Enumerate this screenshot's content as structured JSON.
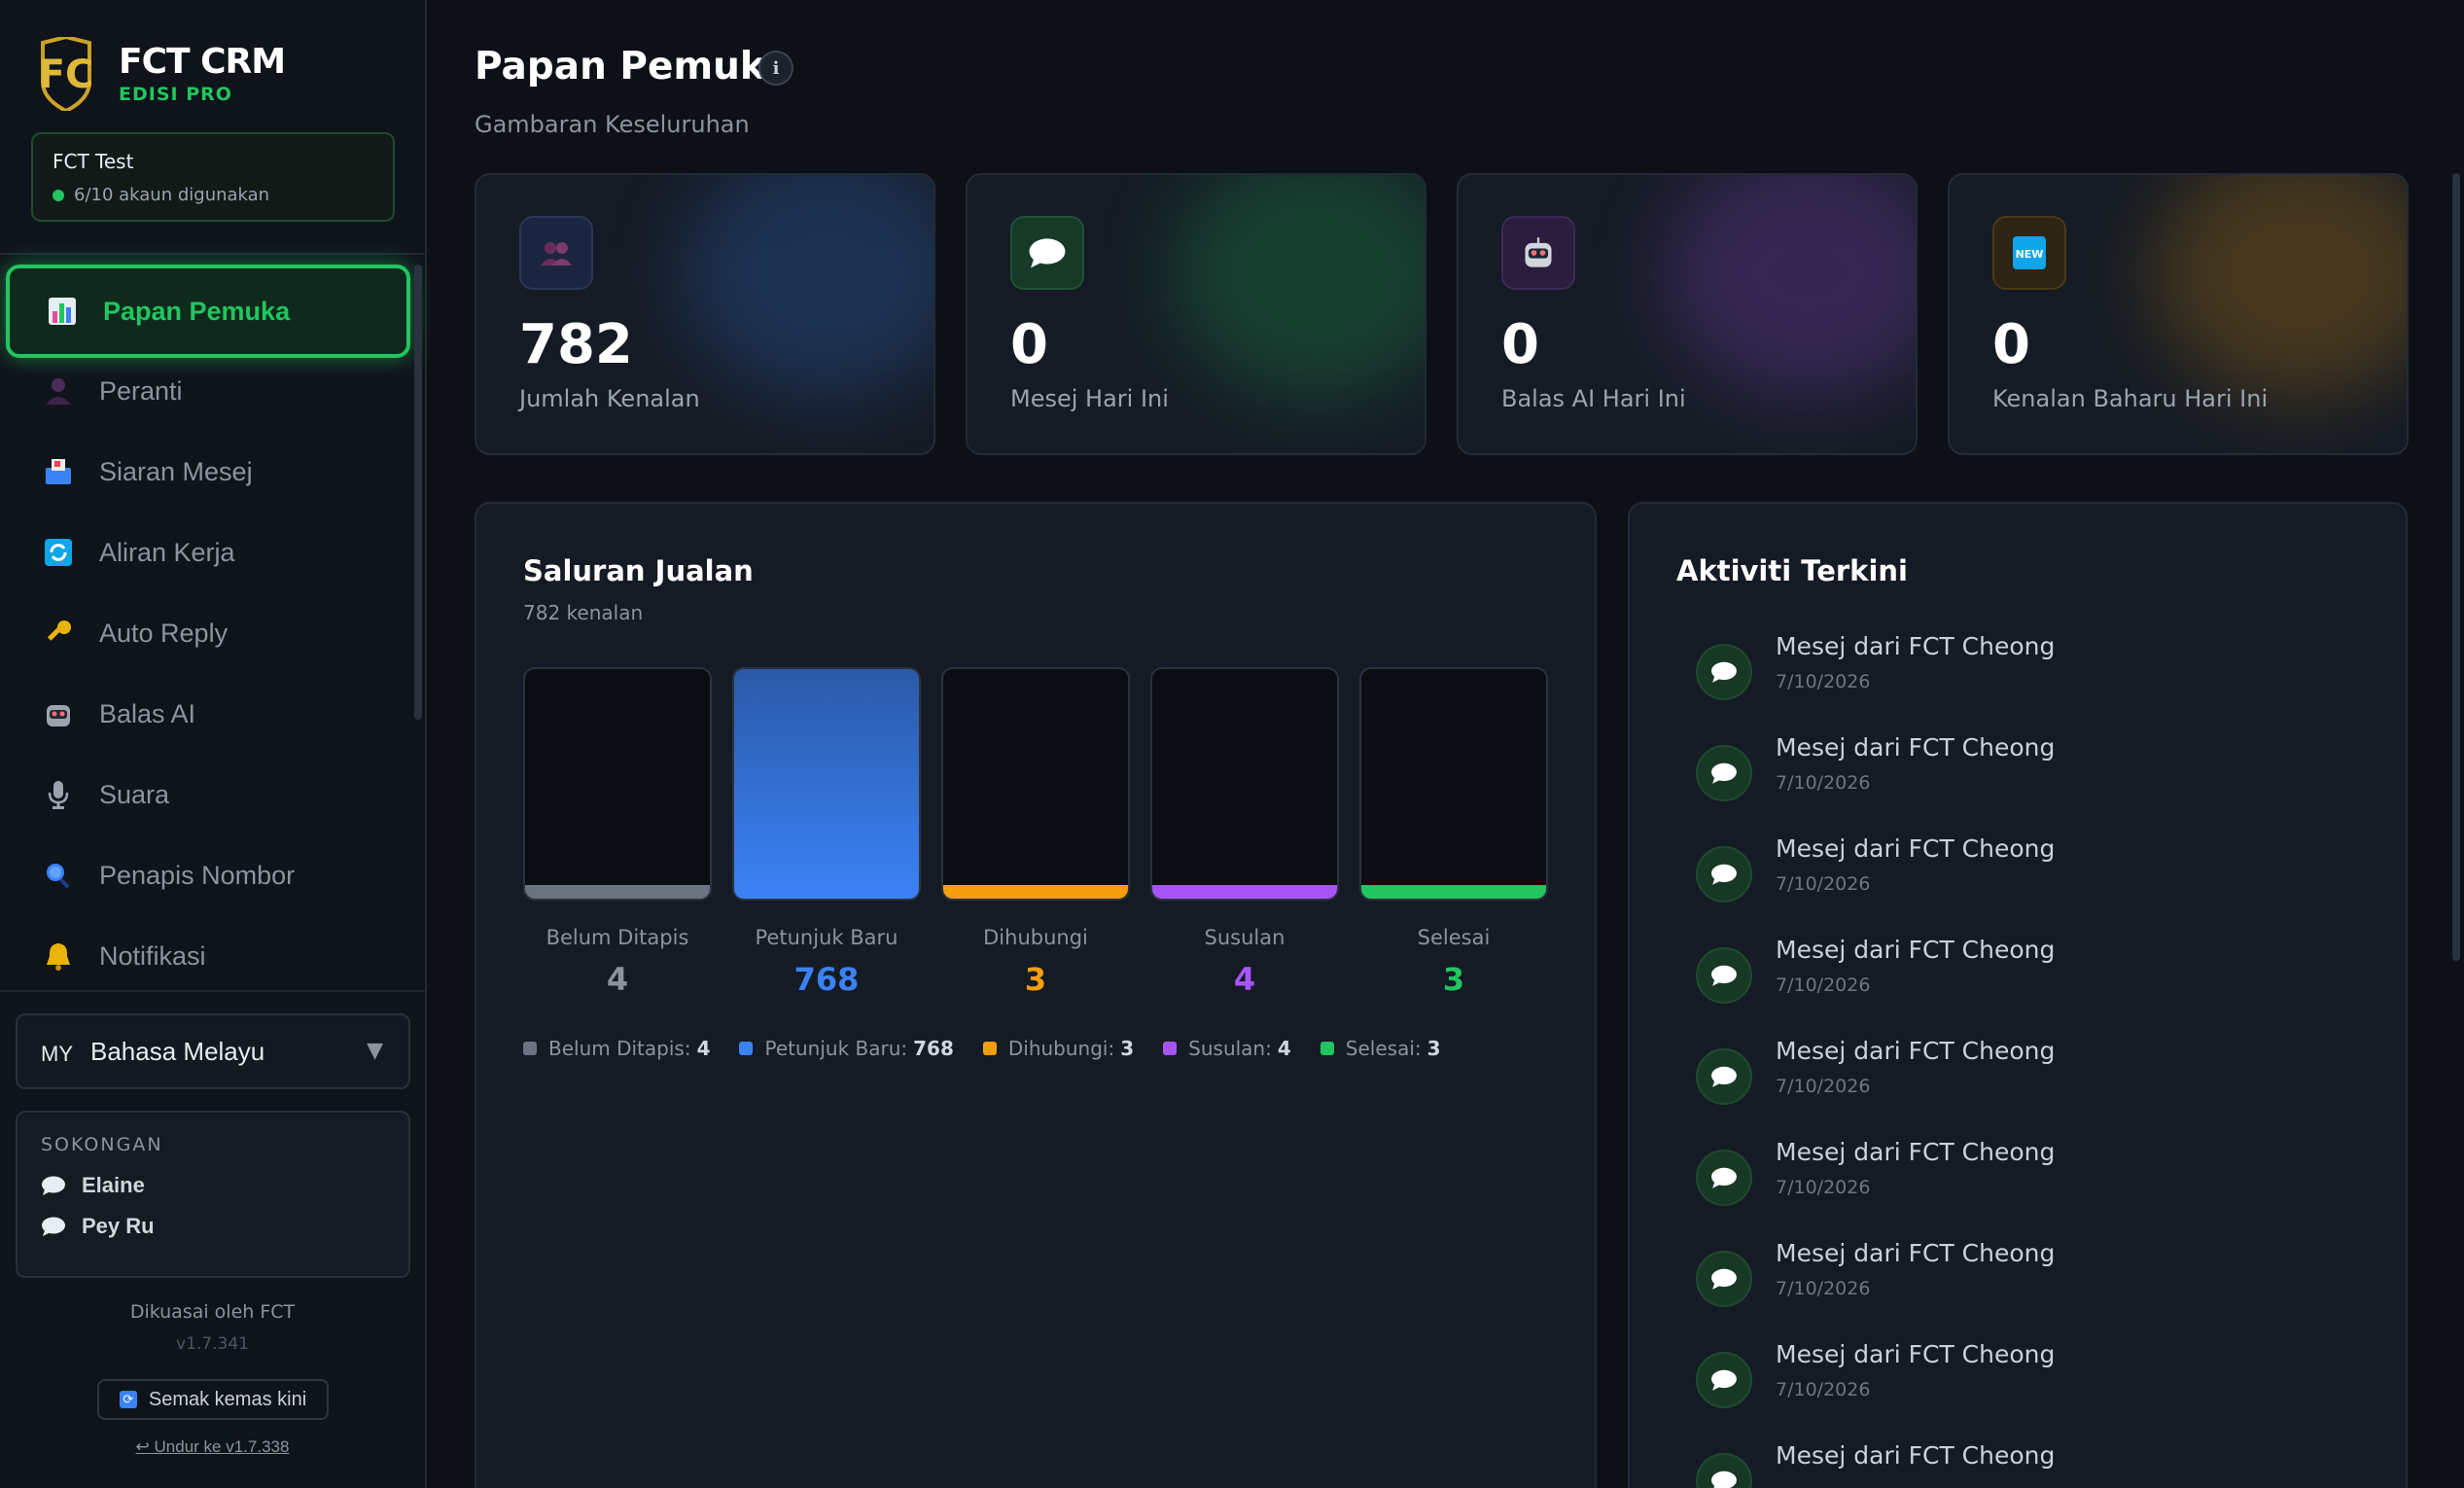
{
  "brand": {
    "title": "FCT CRM",
    "subtitle": "EDISI PRO"
  },
  "account": {
    "name": "FCT Test",
    "usage": "6/10 akaun digunakan"
  },
  "nav": [
    {
      "label": "Papan Pemuka",
      "icon": "chart-icon",
      "active": true
    },
    {
      "label": "Peranti",
      "icon": "user-icon"
    },
    {
      "label": "Siaran Mesej",
      "icon": "inbox-icon"
    },
    {
      "label": "Aliran Kerja",
      "icon": "refresh-icon"
    },
    {
      "label": "Auto Reply",
      "icon": "key-icon"
    },
    {
      "label": "Balas AI",
      "icon": "robot-icon"
    },
    {
      "label": "Suara",
      "icon": "microphone-icon"
    },
    {
      "label": "Penapis Nombor",
      "icon": "magnifier-icon"
    },
    {
      "label": "Notifikasi",
      "icon": "bell-icon"
    }
  ],
  "language": {
    "flag": "MY",
    "label": "Bahasa Melayu"
  },
  "support": {
    "title": "SOKONGAN",
    "contacts": [
      "Elaine",
      "Pey Ru"
    ]
  },
  "footer": {
    "powered": "Dikuasai oleh FCT",
    "version": "v1.7.341",
    "update_button": "Semak kemas kini",
    "rollback": "↩ Undur ke v1.7.338"
  },
  "page": {
    "title": "Papan Pemuka",
    "subtitle": "Gambaran Keseluruhan"
  },
  "stats": [
    {
      "value": "782",
      "label": "Jumlah Kenalan",
      "icon": "people-icon",
      "accent": "#3b82f6"
    },
    {
      "value": "0",
      "label": "Mesej Hari Ini",
      "icon": "chat-icon",
      "accent": "#22c55e"
    },
    {
      "value": "0",
      "label": "Balas AI Hari Ini",
      "icon": "robot-icon",
      "accent": "#a855f7"
    },
    {
      "value": "0",
      "label": "Kenalan Baharu Hari Ini",
      "icon": "new-badge-icon",
      "accent": "#f59e0b"
    }
  ],
  "funnel": {
    "title": "Saluran Jualan",
    "subtitle": "782 kenalan",
    "stages": [
      {
        "name": "Belum Ditapis",
        "value": 4,
        "color": "#6b7280"
      },
      {
        "name": "Petunjuk Baru",
        "value": 768,
        "color": "#3b82f6"
      },
      {
        "name": "Dihubungi",
        "value": 3,
        "color": "#f59e0b"
      },
      {
        "name": "Susulan",
        "value": 4,
        "color": "#a855f7"
      },
      {
        "name": "Selesai",
        "value": 3,
        "color": "#22c55e"
      }
    ]
  },
  "activity": {
    "title": "Aktiviti Terkini",
    "items": [
      {
        "title": "Mesej dari FCT Cheong",
        "date": "7/10/2026"
      },
      {
        "title": "Mesej dari FCT Cheong",
        "date": "7/10/2026"
      },
      {
        "title": "Mesej dari FCT Cheong",
        "date": "7/10/2026"
      },
      {
        "title": "Mesej dari FCT Cheong",
        "date": "7/10/2026"
      },
      {
        "title": "Mesej dari FCT Cheong",
        "date": "7/10/2026"
      },
      {
        "title": "Mesej dari FCT Cheong",
        "date": "7/10/2026"
      },
      {
        "title": "Mesej dari FCT Cheong",
        "date": "7/10/2026"
      },
      {
        "title": "Mesej dari FCT Cheong",
        "date": "7/10/2026"
      },
      {
        "title": "Mesej dari FCT Cheong",
        "date": ""
      }
    ]
  }
}
